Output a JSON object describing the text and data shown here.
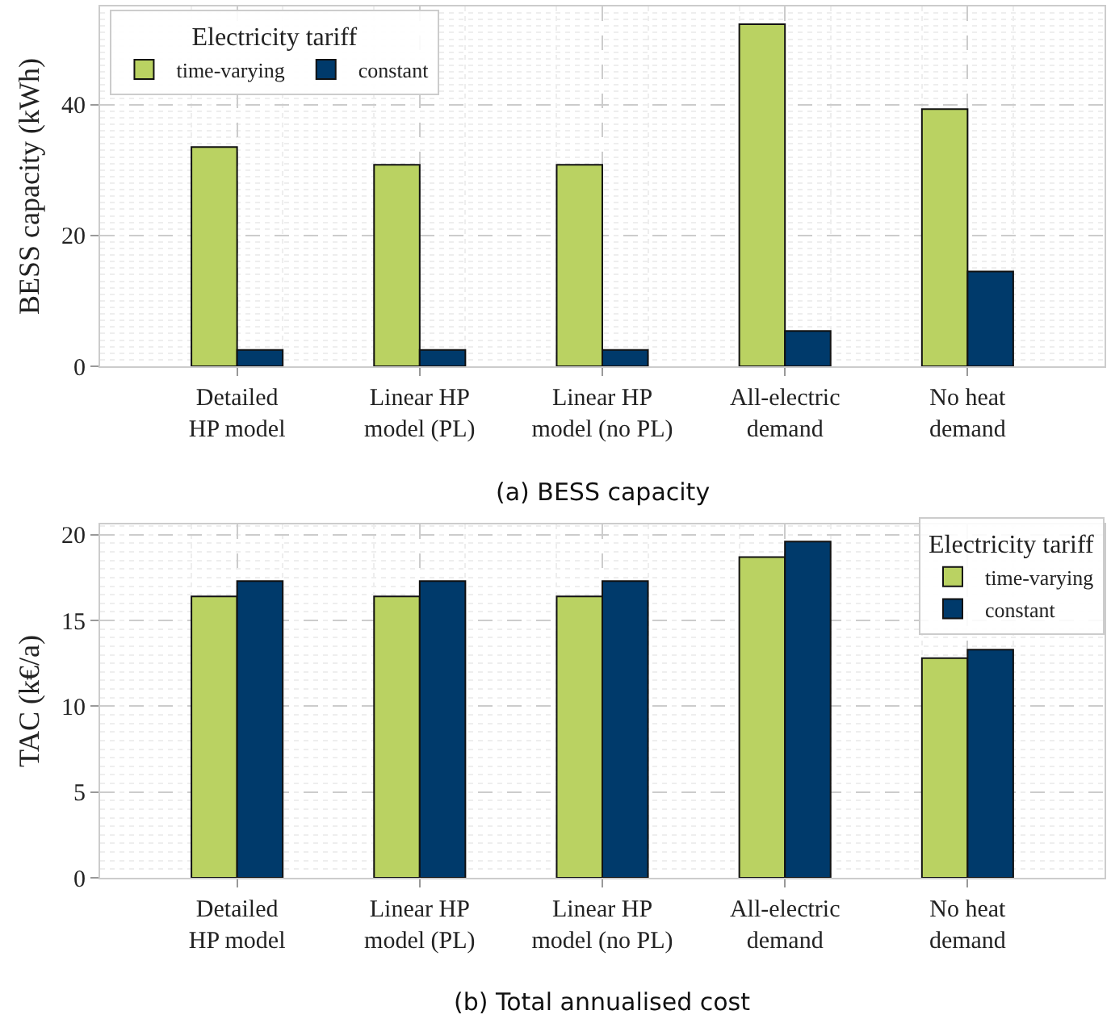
{
  "chart_data": [
    {
      "type": "bar",
      "title": "(a) BESS capacity",
      "ylabel": "BESS capacity (kWh)",
      "legend_title": "Electricity tariff",
      "categories": [
        "Detailed HP model",
        "Linear HP model (PL)",
        "Linear HP model (no PL)",
        "All-electric demand",
        "No heat demand"
      ],
      "series": [
        {
          "name": "time-varying",
          "color": "#bad262",
          "values": [
            33.5,
            30.8,
            30.8,
            52.3,
            39.3
          ]
        },
        {
          "name": "constant",
          "color": "#003a6b",
          "values": [
            2.5,
            2.5,
            2.5,
            5.4,
            14.5
          ]
        }
      ],
      "ylim": [
        0,
        55
      ],
      "yticks": [
        0,
        20,
        40
      ],
      "grid": true,
      "legend": "top left"
    },
    {
      "type": "bar",
      "title": "(b) Total annualised cost",
      "ylabel": "TAC (k€/a)",
      "legend_title": "Electricity tariff",
      "categories": [
        "Detailed HP model",
        "Linear HP model (PL)",
        "Linear HP model (no PL)",
        "All-electric demand",
        "No heat demand"
      ],
      "series": [
        {
          "name": "time-varying",
          "color": "#bad262",
          "values": [
            16.4,
            16.4,
            16.4,
            18.7,
            12.8
          ]
        },
        {
          "name": "constant",
          "color": "#003a6b",
          "values": [
            17.3,
            17.3,
            17.3,
            19.6,
            13.3
          ]
        }
      ],
      "ylim": [
        0,
        20.6
      ],
      "yticks": [
        0,
        5,
        10,
        15,
        20
      ],
      "grid": true,
      "legend": "top right"
    }
  ]
}
